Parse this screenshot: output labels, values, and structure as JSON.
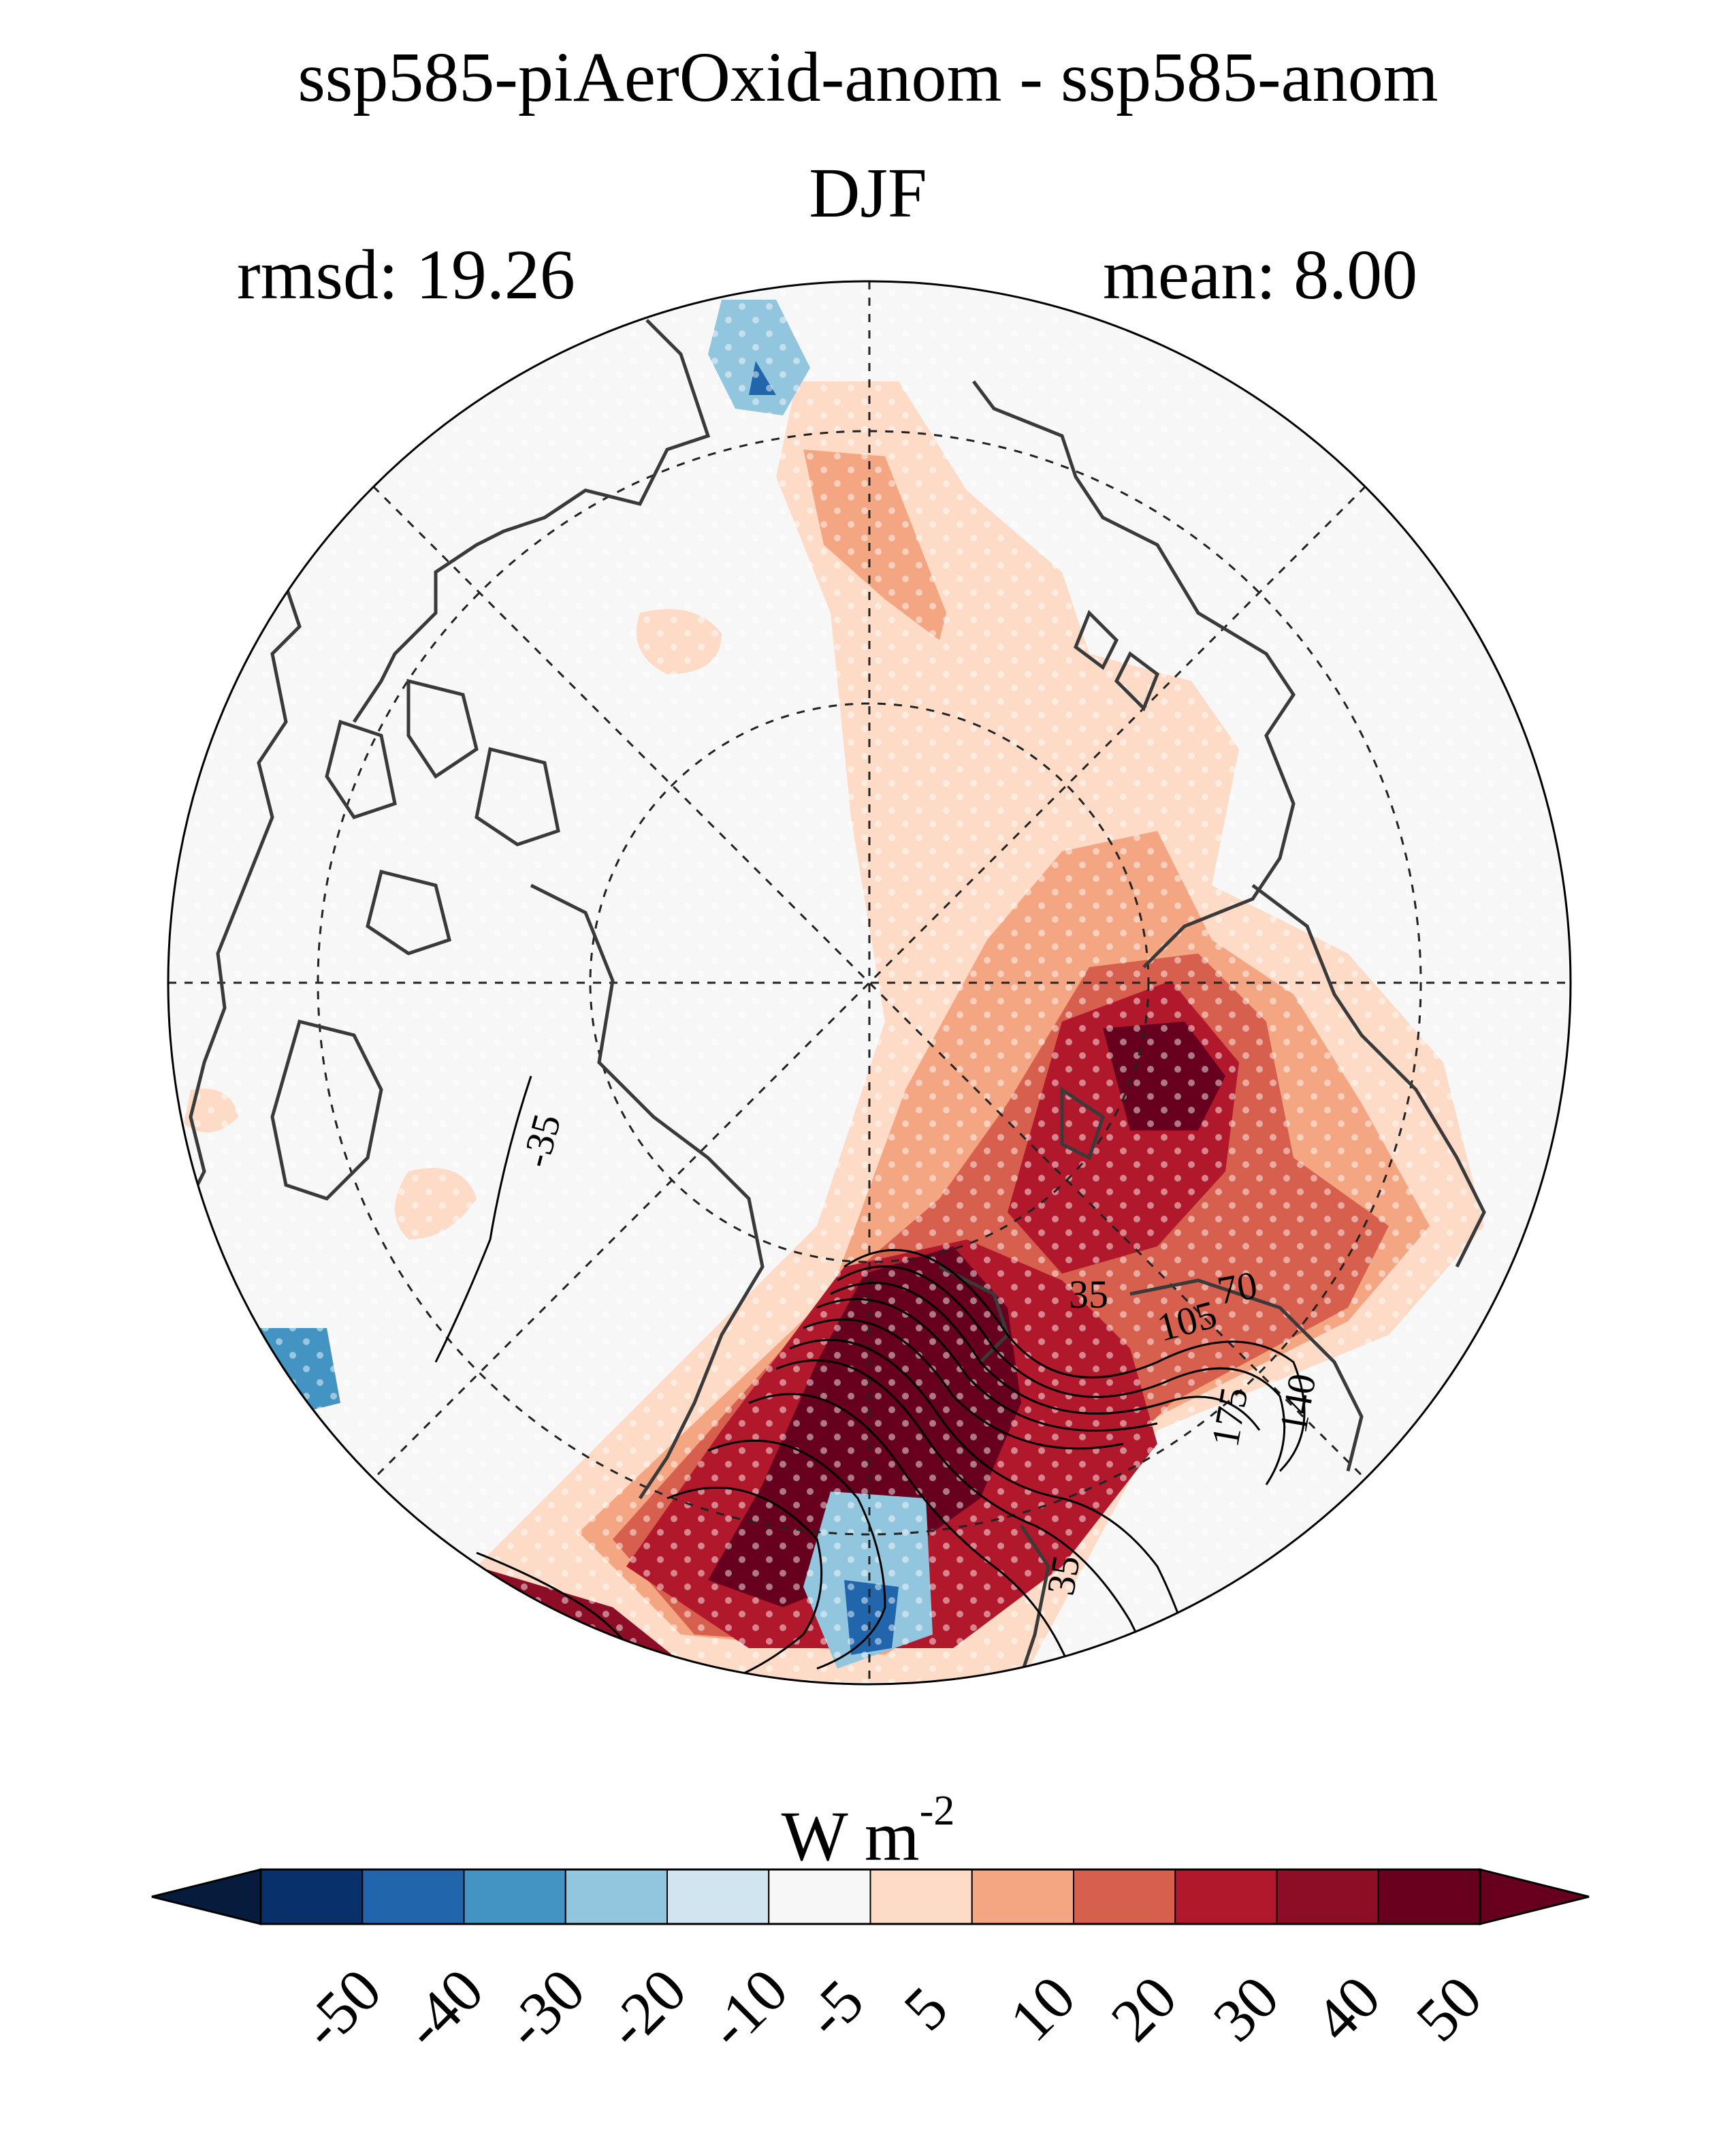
{
  "title": "ssp585-piAerOxid-anom - ssp585-anom",
  "season": "DJF",
  "stats": {
    "rmsd": "rmsd: 19.26",
    "mean": "mean: 8.00"
  },
  "colorbar": {
    "units_base": "W m",
    "units_exp": "-2",
    "ticks": [
      "-50",
      "-40",
      "-30",
      "-20",
      "-10",
      "-5",
      "5",
      "10",
      "20",
      "30",
      "40",
      "50"
    ],
    "colors": [
      "#08306b",
      "#2166ac",
      "#4393c3",
      "#92c5de",
      "#d1e5f0",
      "#f7f7f7",
      "#fddbc7",
      "#f4a582",
      "#d6604d",
      "#b2182b",
      "#8c0d25",
      "#67001f"
    ],
    "under_color": "#071b3d",
    "over_color": "#67001f"
  },
  "contour_labels": [
    "-35",
    "35",
    "70",
    "105",
    "140",
    "175",
    "35"
  ],
  "map": {
    "projection": "north-polar-stereographic",
    "stippling": true,
    "coastlines": true
  }
}
